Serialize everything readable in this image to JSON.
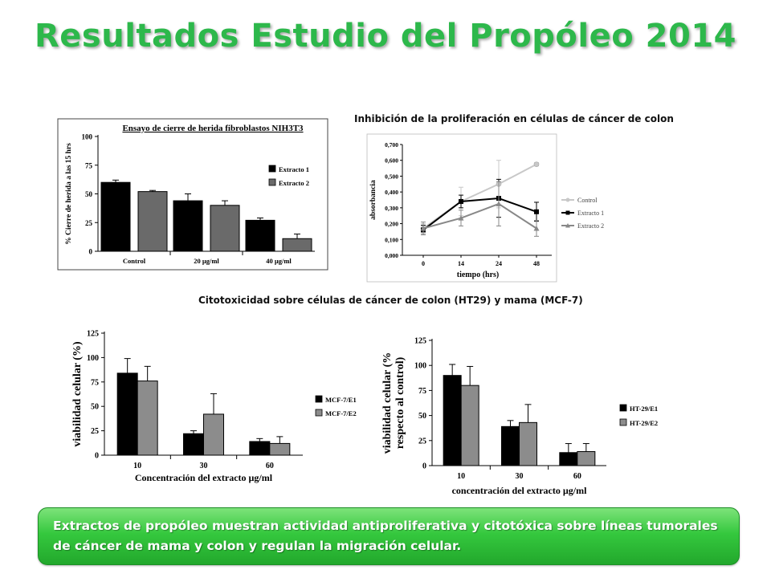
{
  "title": "Resultados Estudio del Propóleo 2014",
  "captions": {
    "proliferation": "Inhibición de la proliferación en células de cáncer de colon",
    "cytotoxicity": "Citotoxicidad sobre células de cáncer de colon (HT29) y mama (MCF-7)"
  },
  "banner": {
    "text": "Extractos de propóleo muestran actividad antiproliferativa y citotóxica sobre líneas tumorales de cáncer de mama y colon  y regulan la migración celular."
  },
  "colors": {
    "title": "#2db84b",
    "banner": "#35c83e",
    "series1": "#000000",
    "series2": "#5c5c5c",
    "series2_light": "#888888",
    "control": "#c8c8c8"
  },
  "chart_data": [
    {
      "id": "wound",
      "type": "bar",
      "title": "Ensayo de cierre de herida fibroblastos NIH3T3",
      "ylabel": "% Cierre de herida a las 15 hrs",
      "xlabel": "",
      "categories": [
        "Control",
        "20 µg/ml",
        "40 µg/ml"
      ],
      "yticks": [
        0,
        25,
        50,
        75,
        100
      ],
      "ylim": [
        0,
        100
      ],
      "series": [
        {
          "name": "Extracto 1",
          "values": [
            60,
            44,
            27
          ],
          "errors": [
            2,
            6,
            2
          ]
        },
        {
          "name": "Extracto 2",
          "values": [
            52,
            40,
            11
          ],
          "errors": [
            1,
            4,
            4
          ]
        }
      ],
      "legend": "right"
    },
    {
      "id": "prolif",
      "type": "line",
      "title": "",
      "ylabel": "absorbancia",
      "xlabel": "tiempo (hrs)",
      "x": [
        "0",
        "14",
        "24",
        "48"
      ],
      "yticks": [
        "0,000",
        "0,100",
        "0,200",
        "0,300",
        "0,400",
        "0,500",
        "0,600",
        "0,700"
      ],
      "ylim": [
        0,
        0.7
      ],
      "series": [
        {
          "name": "Control",
          "values": [
            0.17,
            0.34,
            0.45,
            0.575
          ],
          "errors": [
            0.03,
            0.09,
            0.15,
            0.01
          ]
        },
        {
          "name": "Extracto 1",
          "values": [
            0.16,
            0.34,
            0.36,
            0.275
          ],
          "errors": [
            0.03,
            0.04,
            0.12,
            0.06
          ]
        },
        {
          "name": "Extracto 2",
          "values": [
            0.17,
            0.235,
            0.325,
            0.17
          ],
          "errors": [
            0.04,
            0.05,
            0.14,
            0.05
          ]
        }
      ],
      "legend": "right"
    },
    {
      "id": "mcf7",
      "type": "bar",
      "title": "",
      "ylabel": "viabilidad celular (%)",
      "xlabel": "Concentración del extracto µg/ml",
      "categories": [
        "10",
        "30",
        "60"
      ],
      "yticks": [
        0,
        25,
        50,
        75,
        100,
        125
      ],
      "ylim": [
        0,
        125
      ],
      "series": [
        {
          "name": "MCF-7/E1",
          "values": [
            84,
            22,
            14
          ],
          "errors": [
            15,
            3,
            3
          ]
        },
        {
          "name": "MCF-7/E2",
          "values": [
            76,
            42,
            12
          ],
          "errors": [
            15,
            21,
            7
          ]
        }
      ],
      "legend": "right"
    },
    {
      "id": "ht29",
      "type": "bar",
      "title": "",
      "ylabel_lines": [
        "viabilidad celular (%",
        "respecto al control)"
      ],
      "xlabel": "concentración del extracto µg/ml",
      "categories": [
        "10",
        "30",
        "60"
      ],
      "yticks": [
        0,
        25,
        50,
        75,
        100,
        125
      ],
      "ylim": [
        0,
        125
      ],
      "series": [
        {
          "name": "HT-29/E1",
          "values": [
            90,
            39,
            13
          ],
          "errors": [
            11,
            6,
            9
          ]
        },
        {
          "name": "HT-29/E2",
          "values": [
            80,
            43,
            14
          ],
          "errors": [
            19,
            18,
            8
          ]
        }
      ],
      "legend": "right"
    }
  ]
}
